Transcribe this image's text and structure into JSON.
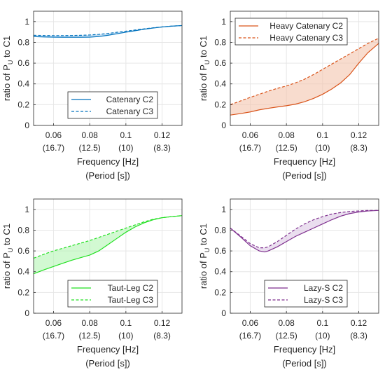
{
  "chart_data": [
    {
      "type": "line",
      "title": "",
      "xlabel": "Frequency [Hz]",
      "xlabel2": "(Period [s])",
      "ylabel_main": "ratio of P",
      "ylabel_sub": "U",
      "ylabel_tail": " to C1",
      "xlim": [
        0.049,
        0.131
      ],
      "ylim": [
        0,
        1.1
      ],
      "xticks": [
        {
          "value": 0.06,
          "label": "0.06",
          "sublabel": "(16.7)"
        },
        {
          "value": 0.08,
          "label": "0.08",
          "sublabel": "(12.5)"
        },
        {
          "value": 0.1,
          "label": "0.1",
          "sublabel": "(10)"
        },
        {
          "value": 0.12,
          "label": "0.12",
          "sublabel": "(8.3)"
        }
      ],
      "yticks": [
        0,
        0.2,
        0.4,
        0.6,
        0.8,
        1
      ],
      "yticklabels": [
        "0",
        "0.2",
        "0.4",
        "0.6",
        "0.8",
        "1"
      ],
      "grid": true,
      "legend_position": "bottom-right",
      "color": "#0072BD",
      "fill_color": "#9DC9EC",
      "x": [
        0.049,
        0.055,
        0.06,
        0.065,
        0.07,
        0.075,
        0.08,
        0.085,
        0.09,
        0.095,
        0.1,
        0.105,
        0.11,
        0.115,
        0.12,
        0.125,
        0.131
      ],
      "series": [
        {
          "name": "Catenary C2",
          "style": "solid",
          "values": [
            0.855,
            0.852,
            0.85,
            0.849,
            0.849,
            0.849,
            0.85,
            0.856,
            0.868,
            0.883,
            0.898,
            0.912,
            0.926,
            0.938,
            0.948,
            0.956,
            0.962
          ]
        },
        {
          "name": "Catenary C3",
          "style": "dashed",
          "values": [
            0.868,
            0.866,
            0.865,
            0.865,
            0.866,
            0.868,
            0.871,
            0.877,
            0.886,
            0.897,
            0.908,
            0.919,
            0.93,
            0.94,
            0.949,
            0.956,
            0.962
          ]
        }
      ]
    },
    {
      "type": "line",
      "title": "",
      "xlabel": "Frequency [Hz]",
      "xlabel2": "(Period [s])",
      "ylabel_main": "ratio of P",
      "ylabel_sub": "U",
      "ylabel_tail": " to C1",
      "xlim": [
        0.049,
        0.131
      ],
      "ylim": [
        0,
        1.1
      ],
      "xticks": [
        {
          "value": 0.06,
          "label": "0.06",
          "sublabel": "(16.7)"
        },
        {
          "value": 0.08,
          "label": "0.08",
          "sublabel": "(12.5)"
        },
        {
          "value": 0.1,
          "label": "0.1",
          "sublabel": "(10)"
        },
        {
          "value": 0.12,
          "label": "0.12",
          "sublabel": "(8.3)"
        }
      ],
      "yticks": [
        0,
        0.2,
        0.4,
        0.6,
        0.8,
        1
      ],
      "yticklabels": [
        "0",
        "0.2",
        "0.4",
        "0.6",
        "0.8",
        "1"
      ],
      "grid": true,
      "legend_position": "top-right",
      "color": "#D95319",
      "fill_color": "#F4C4AE",
      "x": [
        0.049,
        0.055,
        0.06,
        0.065,
        0.07,
        0.075,
        0.08,
        0.085,
        0.09,
        0.095,
        0.1,
        0.105,
        0.11,
        0.115,
        0.12,
        0.125,
        0.131
      ],
      "series": [
        {
          "name": "Heavy Catenary C2",
          "style": "solid",
          "values": [
            0.1,
            0.115,
            0.13,
            0.15,
            0.165,
            0.178,
            0.19,
            0.205,
            0.228,
            0.26,
            0.3,
            0.35,
            0.41,
            0.49,
            0.6,
            0.7,
            0.79
          ]
        },
        {
          "name": "Heavy Catenary C3",
          "style": "dashed",
          "values": [
            0.2,
            0.238,
            0.27,
            0.3,
            0.33,
            0.357,
            0.38,
            0.41,
            0.445,
            0.49,
            0.54,
            0.59,
            0.64,
            0.69,
            0.74,
            0.79,
            0.84
          ]
        }
      ]
    },
    {
      "type": "line",
      "title": "",
      "xlabel": "Frequency [Hz]",
      "xlabel2": "(Period [s])",
      "ylabel_main": "ratio of P",
      "ylabel_sub": "U",
      "ylabel_tail": " to C1",
      "xlim": [
        0.049,
        0.131
      ],
      "ylim": [
        0,
        1.1
      ],
      "xticks": [
        {
          "value": 0.06,
          "label": "0.06",
          "sublabel": "(16.7)"
        },
        {
          "value": 0.08,
          "label": "0.08",
          "sublabel": "(12.5)"
        },
        {
          "value": 0.1,
          "label": "0.1",
          "sublabel": "(10)"
        },
        {
          "value": 0.12,
          "label": "0.12",
          "sublabel": "(8.3)"
        }
      ],
      "yticks": [
        0,
        0.2,
        0.4,
        0.6,
        0.8,
        1
      ],
      "yticklabels": [
        "0",
        "0.2",
        "0.4",
        "0.6",
        "0.8",
        "1"
      ],
      "grid": true,
      "legend_position": "bottom-right",
      "color": "#22E022",
      "fill_color": "#B4F5B4",
      "x": [
        0.049,
        0.055,
        0.06,
        0.065,
        0.07,
        0.075,
        0.08,
        0.085,
        0.09,
        0.095,
        0.1,
        0.105,
        0.11,
        0.115,
        0.12,
        0.125,
        0.131
      ],
      "series": [
        {
          "name": "Taut-Leg C2",
          "style": "solid",
          "values": [
            0.38,
            0.42,
            0.45,
            0.48,
            0.51,
            0.535,
            0.56,
            0.6,
            0.66,
            0.72,
            0.78,
            0.83,
            0.87,
            0.9,
            0.92,
            0.93,
            0.94
          ]
        },
        {
          "name": "Taut-Leg C3",
          "style": "dashed",
          "values": [
            0.53,
            0.57,
            0.6,
            0.625,
            0.65,
            0.675,
            0.7,
            0.73,
            0.76,
            0.79,
            0.82,
            0.85,
            0.88,
            0.905,
            0.92,
            0.93,
            0.94
          ]
        }
      ]
    },
    {
      "type": "line",
      "title": "",
      "xlabel": "Frequency [Hz]",
      "xlabel2": "(Period [s])",
      "ylabel_main": "ratio of P",
      "ylabel_sub": "U",
      "ylabel_tail": " to C1",
      "xlim": [
        0.049,
        0.131
      ],
      "ylim": [
        0,
        1.1
      ],
      "xticks": [
        {
          "value": 0.06,
          "label": "0.06",
          "sublabel": "(16.7)"
        },
        {
          "value": 0.08,
          "label": "0.08",
          "sublabel": "(12.5)"
        },
        {
          "value": 0.1,
          "label": "0.1",
          "sublabel": "(10)"
        },
        {
          "value": 0.12,
          "label": "0.12",
          "sublabel": "(8.3)"
        }
      ],
      "yticks": [
        0,
        0.2,
        0.4,
        0.6,
        0.8,
        1
      ],
      "yticklabels": [
        "0",
        "0.2",
        "0.4",
        "0.6",
        "0.8",
        "1"
      ],
      "grid": true,
      "legend_position": "bottom-right",
      "color": "#7E2F8E",
      "fill_color": "#DCC8E4",
      "x": [
        0.049,
        0.055,
        0.06,
        0.065,
        0.068,
        0.07,
        0.075,
        0.08,
        0.085,
        0.09,
        0.095,
        0.1,
        0.105,
        0.11,
        0.115,
        0.12,
        0.125,
        0.131
      ],
      "series": [
        {
          "name": "Lazy-S C2",
          "style": "solid",
          "values": [
            0.82,
            0.73,
            0.65,
            0.6,
            0.59,
            0.6,
            0.64,
            0.69,
            0.74,
            0.78,
            0.82,
            0.86,
            0.9,
            0.935,
            0.96,
            0.975,
            0.985,
            0.99
          ]
        },
        {
          "name": "Lazy-S C3",
          "style": "dashed",
          "values": [
            0.82,
            0.74,
            0.67,
            0.63,
            0.63,
            0.64,
            0.69,
            0.75,
            0.81,
            0.86,
            0.9,
            0.93,
            0.955,
            0.97,
            0.98,
            0.985,
            0.99,
            0.99
          ]
        }
      ]
    }
  ]
}
